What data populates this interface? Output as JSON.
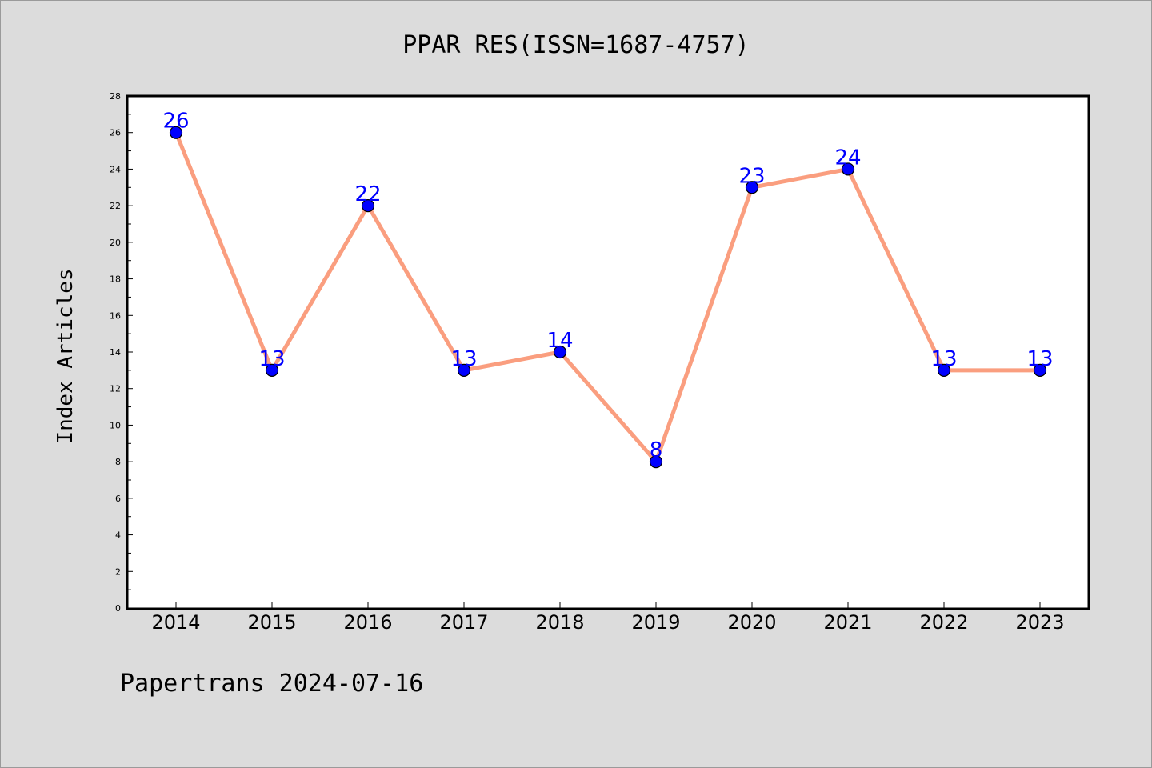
{
  "footer": "Papertrans 2024-07-16",
  "colors": {
    "background": "#dcdcdc",
    "plot_background": "#ffffff",
    "line": "#fa9e7f",
    "marker": "#0000ff",
    "data_label": "#0000ff"
  },
  "chart_data": {
    "type": "line",
    "title": "PPAR RES(ISSN=1687-4757)",
    "xlabel": "",
    "ylabel": "Index Articles",
    "categories": [
      "2014",
      "2015",
      "2016",
      "2017",
      "2018",
      "2019",
      "2020",
      "2021",
      "2022",
      "2023"
    ],
    "series": [
      {
        "values": [
          26,
          13,
          22,
          13,
          14,
          8,
          23,
          24,
          13,
          13
        ]
      }
    ],
    "ylim": [
      0,
      28
    ],
    "yticks": [
      "0",
      "2",
      "4",
      "6",
      "8",
      "10",
      "12",
      "14",
      "16",
      "18",
      "20",
      "22",
      "24",
      "26",
      "28"
    ],
    "ytick_values": [
      0,
      2,
      4,
      6,
      8,
      10,
      12,
      14,
      16,
      18,
      20,
      22,
      24,
      26,
      28
    ],
    "grid": false,
    "legend": "none",
    "data_labels": true
  }
}
